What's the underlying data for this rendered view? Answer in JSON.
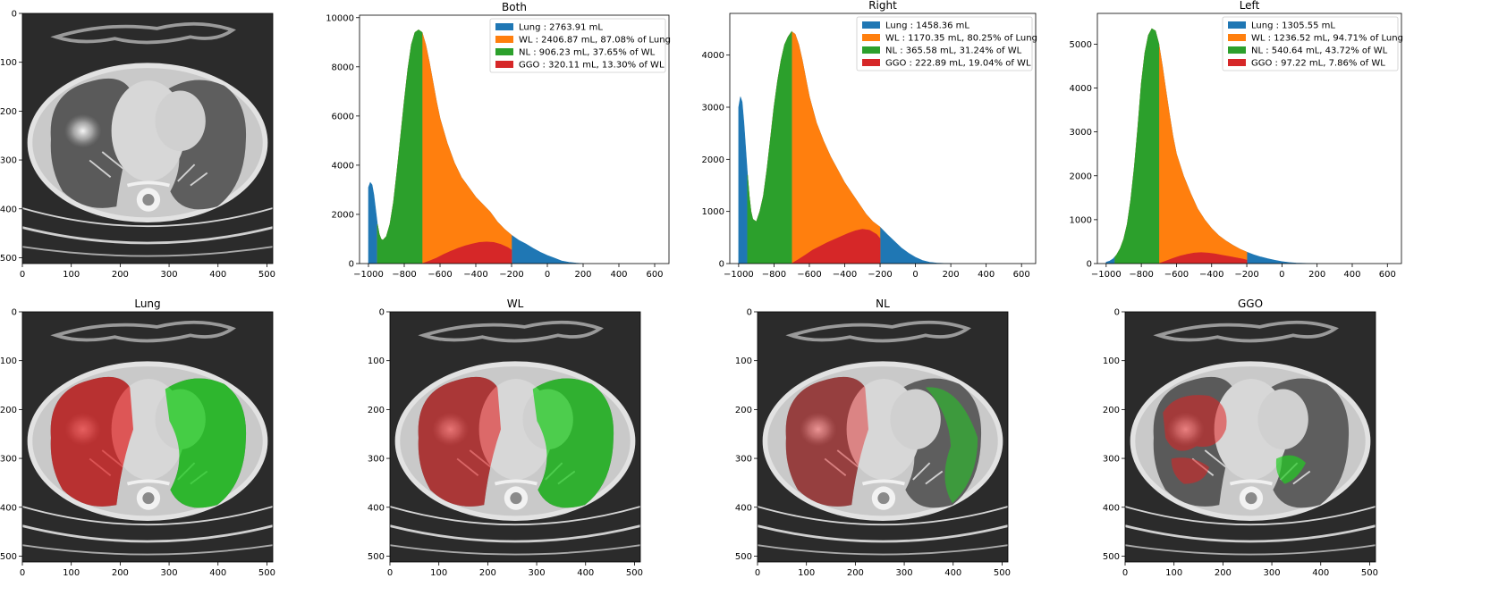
{
  "colors": {
    "lung": "#1f77b4",
    "wl": "#ff7f0e",
    "nl": "#2ca02c",
    "ggo": "#d62728",
    "overlay_red": "#e02020",
    "overlay_green": "#22cc22"
  },
  "chart_data": [
    {
      "type": "area",
      "title": "Both",
      "xlim": [
        -1050,
        680
      ],
      "ylim": [
        0,
        10100
      ],
      "xticks": [
        -1000,
        -800,
        -600,
        -400,
        -200,
        0,
        200,
        400,
        600
      ],
      "yticks": [
        0,
        2000,
        4000,
        6000,
        8000,
        10000
      ],
      "legend_position": "top-right",
      "legend": [
        "Lung : 2763.91 mL",
        "WL : 2406.87 mL, 87.08% of Lung",
        "NL : 906.23 mL, 37.65% of WL",
        "GGO : 320.11 mL, 13.30% of WL"
      ],
      "series": [
        {
          "name": "Lung",
          "x": [
            -1000,
            -990,
            -980,
            -970,
            -960,
            -950,
            -940,
            -930,
            -920,
            -900,
            -880,
            -860,
            -840,
            -820,
            -800,
            -780,
            -760,
            -740,
            -720,
            -700,
            -680,
            -660,
            -640,
            -620,
            -600,
            -560,
            -520,
            -480,
            -440,
            -400,
            -360,
            -320,
            -280,
            -240,
            -200,
            -160,
            -120,
            -80,
            -40,
            0,
            40,
            80,
            120,
            160,
            200
          ],
          "y": [
            3100,
            3300,
            3200,
            2800,
            2200,
            1600,
            1200,
            1000,
            950,
            1100,
            1600,
            2500,
            3800,
            5200,
            6600,
            7900,
            8900,
            9400,
            9500,
            9400,
            8900,
            8200,
            7400,
            6600,
            5900,
            4900,
            4100,
            3500,
            3100,
            2700,
            2400,
            2100,
            1700,
            1400,
            1150,
            950,
            800,
            620,
            460,
            330,
            220,
            110,
            50,
            20,
            0
          ]
        },
        {
          "name": "WL",
          "x": [
            -950,
            -940,
            -930,
            -920,
            -900,
            -880,
            -860,
            -840,
            -820,
            -800,
            -780,
            -760,
            -740,
            -720,
            -700,
            -680,
            -660,
            -640,
            -620,
            -600,
            -560,
            -520,
            -480,
            -440,
            -400,
            -360,
            -320,
            -280,
            -240,
            -200
          ],
          "y": [
            1600,
            1200,
            1000,
            950,
            1100,
            1600,
            2500,
            3800,
            5200,
            6600,
            7900,
            8900,
            9400,
            9500,
            9400,
            8900,
            8200,
            7400,
            6600,
            5900,
            4900,
            4100,
            3500,
            3100,
            2700,
            2400,
            2100,
            1700,
            1400,
            1150
          ]
        },
        {
          "name": "NL",
          "x": [
            -950,
            -940,
            -930,
            -920,
            -900,
            -880,
            -860,
            -840,
            -820,
            -800,
            -780,
            -760,
            -740,
            -720,
            -700
          ],
          "y": [
            1600,
            1200,
            1000,
            950,
            1100,
            1600,
            2500,
            3800,
            5200,
            6600,
            7900,
            8900,
            9400,
            9500,
            9400
          ]
        },
        {
          "name": "GGO",
          "x": [
            -700,
            -660,
            -620,
            -580,
            -540,
            -500,
            -460,
            -420,
            -380,
            -340,
            -300,
            -260,
            -220,
            -200
          ],
          "y": [
            0,
            100,
            220,
            370,
            500,
            620,
            720,
            800,
            860,
            880,
            860,
            780,
            650,
            550
          ]
        }
      ]
    },
    {
      "type": "area",
      "title": "Right",
      "xlim": [
        -1050,
        680
      ],
      "ylim": [
        0,
        4800
      ],
      "xticks": [
        -1000,
        -800,
        -600,
        -400,
        -200,
        0,
        200,
        400,
        600
      ],
      "yticks": [
        0,
        1000,
        2000,
        3000,
        4000
      ],
      "legend_position": "top-right",
      "legend": [
        "Lung : 1458.36 mL",
        "WL : 1170.35 mL, 80.25% of Lung",
        "NL : 365.58 mL, 31.24% of WL",
        "GGO : 222.89 mL, 19.04% of WL"
      ],
      "series": [
        {
          "name": "Lung",
          "x": [
            -1000,
            -990,
            -980,
            -970,
            -960,
            -950,
            -940,
            -930,
            -920,
            -900,
            -880,
            -860,
            -840,
            -820,
            -800,
            -780,
            -760,
            -740,
            -720,
            -700,
            -680,
            -660,
            -640,
            -620,
            -600,
            -560,
            -520,
            -480,
            -440,
            -400,
            -360,
            -320,
            -280,
            -240,
            -200,
            -160,
            -120,
            -80,
            -40,
            0,
            40,
            80,
            120,
            160,
            200
          ],
          "y": [
            3000,
            3200,
            3100,
            2700,
            2200,
            1700,
            1300,
            1000,
            850,
            800,
            1000,
            1300,
            1800,
            2400,
            3000,
            3500,
            3900,
            4200,
            4350,
            4450,
            4400,
            4200,
            3900,
            3550,
            3200,
            2700,
            2350,
            2050,
            1800,
            1550,
            1350,
            1150,
            950,
            800,
            700,
            560,
            430,
            300,
            200,
            120,
            60,
            25,
            10,
            4,
            0
          ]
        },
        {
          "name": "WL",
          "x": [
            -950,
            -940,
            -930,
            -920,
            -900,
            -880,
            -860,
            -840,
            -820,
            -800,
            -780,
            -760,
            -740,
            -720,
            -700,
            -680,
            -660,
            -640,
            -620,
            -600,
            -560,
            -520,
            -480,
            -440,
            -400,
            -360,
            -320,
            -280,
            -240,
            -200
          ],
          "y": [
            1700,
            1300,
            1000,
            850,
            800,
            1000,
            1300,
            1800,
            2400,
            3000,
            3500,
            3900,
            4200,
            4350,
            4450,
            4400,
            4200,
            3900,
            3550,
            3200,
            2700,
            2350,
            2050,
            1800,
            1550,
            1350,
            1150,
            950,
            800,
            700
          ]
        },
        {
          "name": "NL",
          "x": [
            -950,
            -940,
            -930,
            -920,
            -900,
            -880,
            -860,
            -840,
            -820,
            -800,
            -780,
            -760,
            -740,
            -720,
            -700
          ],
          "y": [
            1700,
            1300,
            1000,
            850,
            800,
            1000,
            1300,
            1800,
            2400,
            3000,
            3500,
            3900,
            4200,
            4350,
            4450
          ]
        },
        {
          "name": "GGO",
          "x": [
            -700,
            -660,
            -620,
            -580,
            -540,
            -500,
            -460,
            -420,
            -380,
            -340,
            -300,
            -260,
            -220,
            -200
          ],
          "y": [
            0,
            80,
            170,
            260,
            330,
            400,
            460,
            520,
            580,
            630,
            660,
            640,
            560,
            480
          ]
        }
      ]
    },
    {
      "type": "area",
      "title": "Left",
      "xlim": [
        -1050,
        680
      ],
      "ylim": [
        0,
        5700
      ],
      "xticks": [
        -1000,
        -800,
        -600,
        -400,
        -200,
        0,
        200,
        400,
        600
      ],
      "yticks": [
        0,
        1000,
        2000,
        3000,
        4000,
        5000
      ],
      "legend_position": "top-right",
      "legend": [
        "Lung : 1305.55 mL",
        "WL : 1236.52 mL, 94.71% of Lung",
        "NL : 540.64 mL, 43.72% of WL",
        "GGO : 97.22 mL, 7.86% of WL"
      ],
      "series": [
        {
          "name": "Lung",
          "x": [
            -1000,
            -980,
            -960,
            -940,
            -920,
            -900,
            -880,
            -860,
            -840,
            -820,
            -800,
            -780,
            -760,
            -740,
            -720,
            -700,
            -680,
            -660,
            -640,
            -620,
            -600,
            -560,
            -520,
            -480,
            -440,
            -400,
            -360,
            -320,
            -280,
            -240,
            -200,
            -160,
            -120,
            -80,
            -40,
            0,
            40,
            80,
            120,
            160,
            200
          ],
          "y": [
            30,
            60,
            110,
            200,
            340,
            560,
            900,
            1450,
            2200,
            3100,
            4100,
            4800,
            5200,
            5350,
            5300,
            5000,
            4500,
            3950,
            3400,
            2900,
            2500,
            2000,
            1600,
            1250,
            1000,
            800,
            640,
            520,
            420,
            330,
            260,
            200,
            150,
            110,
            75,
            45,
            25,
            12,
            6,
            2,
            0
          ]
        },
        {
          "name": "WL",
          "x": [
            -950,
            -940,
            -920,
            -900,
            -880,
            -860,
            -840,
            -820,
            -800,
            -780,
            -760,
            -740,
            -720,
            -700,
            -680,
            -660,
            -640,
            -620,
            -600,
            -560,
            -520,
            -480,
            -440,
            -400,
            -360,
            -320,
            -280,
            -240,
            -200
          ],
          "y": [
            150,
            200,
            340,
            560,
            900,
            1450,
            2200,
            3100,
            4100,
            4800,
            5200,
            5350,
            5300,
            5000,
            4500,
            3950,
            3400,
            2900,
            2500,
            2000,
            1600,
            1250,
            1000,
            800,
            640,
            520,
            420,
            330,
            260
          ]
        },
        {
          "name": "NL",
          "x": [
            -950,
            -940,
            -920,
            -900,
            -880,
            -860,
            -840,
            -820,
            -800,
            -780,
            -760,
            -740,
            -720,
            -700
          ],
          "y": [
            150,
            200,
            340,
            560,
            900,
            1450,
            2200,
            3100,
            4100,
            4800,
            5200,
            5350,
            5300,
            5000
          ]
        },
        {
          "name": "GGO",
          "x": [
            -700,
            -660,
            -620,
            -580,
            -540,
            -500,
            -460,
            -420,
            -380,
            -340,
            -300,
            -260,
            -220,
            -200
          ],
          "y": [
            0,
            60,
            120,
            170,
            210,
            240,
            250,
            240,
            220,
            190,
            160,
            130,
            100,
            80
          ]
        }
      ]
    }
  ],
  "images": [
    {
      "title": "",
      "overlay": "none"
    },
    {
      "title": "Lung",
      "overlay": "lung"
    },
    {
      "title": "WL",
      "overlay": "wl"
    },
    {
      "title": "NL",
      "overlay": "nl"
    },
    {
      "title": "GGO",
      "overlay": "ggo"
    }
  ],
  "image_axes": {
    "xticks": [
      0,
      100,
      200,
      300,
      400,
      500
    ],
    "yticks": [
      0,
      100,
      200,
      300,
      400,
      500
    ],
    "range": [
      0,
      512
    ]
  }
}
